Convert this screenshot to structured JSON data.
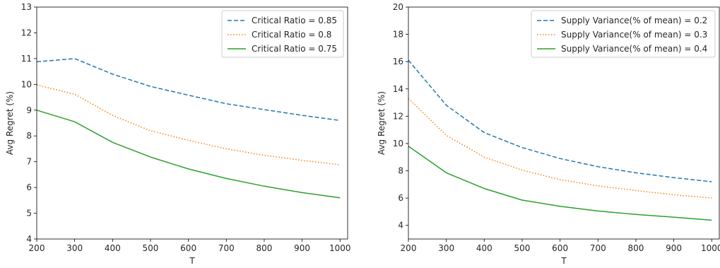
{
  "chart_data": [
    {
      "type": "line",
      "xlabel": "T",
      "ylabel": "Avg Regret (%)",
      "xlim": [
        200,
        1020
      ],
      "ylim": [
        4,
        13
      ],
      "xticks": [
        200,
        300,
        400,
        500,
        600,
        700,
        800,
        900,
        1000
      ],
      "yticks": [
        4,
        5,
        6,
        7,
        8,
        9,
        10,
        11,
        12,
        13
      ],
      "grid": false,
      "legend_position": "top-right",
      "x": [
        200,
        300,
        400,
        500,
        600,
        700,
        800,
        900,
        1000
      ],
      "series": [
        {
          "name": "Critical Ratio = 0.85",
          "color": "#1f77b4",
          "style": "dashed",
          "values": [
            10.88,
            11.0,
            10.4,
            9.92,
            9.58,
            9.25,
            9.02,
            8.8,
            8.6
          ]
        },
        {
          "name": "Critical Ratio = 0.8",
          "color": "#ff7f0e",
          "style": "dotted",
          "values": [
            9.98,
            9.62,
            8.8,
            8.2,
            7.83,
            7.5,
            7.25,
            7.05,
            6.88
          ]
        },
        {
          "name": "Critical Ratio = 0.75",
          "color": "#2ca02c",
          "style": "solid",
          "values": [
            9.0,
            8.55,
            7.75,
            7.18,
            6.72,
            6.35,
            6.05,
            5.8,
            5.6
          ]
        }
      ]
    },
    {
      "type": "line",
      "xlabel": "T",
      "ylabel": "Avg Regret (%)",
      "xlim": [
        200,
        1020
      ],
      "ylim": [
        3,
        20
      ],
      "xticks": [
        200,
        300,
        400,
        500,
        600,
        700,
        800,
        900,
        1000
      ],
      "yticks": [
        4,
        6,
        8,
        10,
        12,
        14,
        16,
        18,
        20
      ],
      "grid": false,
      "legend_position": "top-right",
      "x": [
        200,
        300,
        400,
        500,
        600,
        700,
        800,
        900,
        1000
      ],
      "series": [
        {
          "name": "Supply Variance(% of mean) = 0.2",
          "color": "#1f77b4",
          "style": "dashed",
          "values": [
            16.1,
            12.8,
            10.8,
            9.7,
            8.9,
            8.3,
            7.85,
            7.5,
            7.2
          ]
        },
        {
          "name": "Supply Variance(% of mean) = 0.3",
          "color": "#ff7f0e",
          "style": "dotted",
          "values": [
            13.3,
            10.6,
            9.0,
            8.05,
            7.35,
            6.9,
            6.55,
            6.25,
            6.0
          ]
        },
        {
          "name": "Supply Variance(% of mean) = 0.4",
          "color": "#2ca02c",
          "style": "solid",
          "values": [
            9.8,
            7.85,
            6.7,
            5.85,
            5.4,
            5.05,
            4.8,
            4.6,
            4.38
          ]
        }
      ]
    }
  ]
}
